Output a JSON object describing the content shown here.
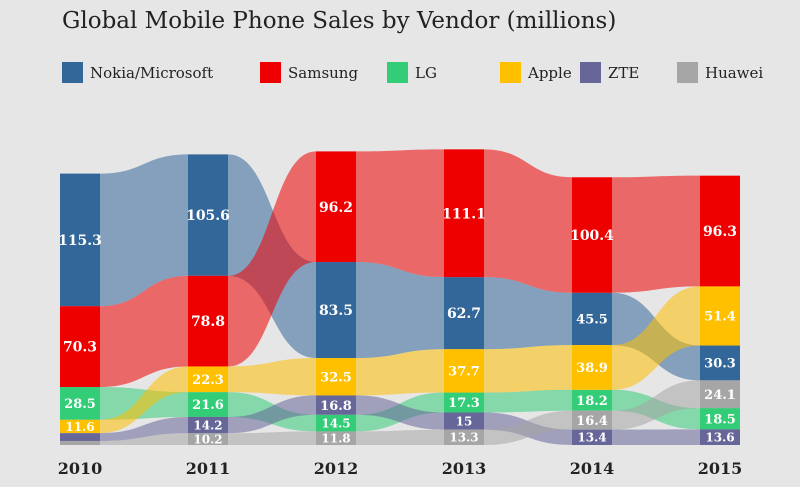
{
  "chart_data": {
    "type": "bump-area",
    "title": "Global Mobile Phone Sales by Vendor (millions)",
    "categories": [
      "2010",
      "2011",
      "2012",
      "2013",
      "2014",
      "2015"
    ],
    "series": [
      {
        "name": "Nokia/Microsoft",
        "color": "#336699",
        "values": [
          115.3,
          105.6,
          83.5,
          62.7,
          45.5,
          30.3
        ]
      },
      {
        "name": "Samsung",
        "color": "#ee0000",
        "values": [
          70.3,
          78.8,
          96.2,
          111.1,
          100.4,
          96.3
        ]
      },
      {
        "name": "LG",
        "color": "#33cc77",
        "values": [
          28.5,
          21.6,
          14.5,
          17.3,
          18.2,
          18.5
        ]
      },
      {
        "name": "Apple",
        "color": "#ffc000",
        "values": [
          11.6,
          22.3,
          32.5,
          37.7,
          38.9,
          51.4
        ]
      },
      {
        "name": "ZTE",
        "color": "#666699",
        "values": [
          6.8,
          14.2,
          16.8,
          15.0,
          13.4,
          13.6
        ]
      },
      {
        "name": "Huawei",
        "color": "#a6a6a6",
        "values": [
          3.5,
          10.2,
          11.8,
          13.3,
          16.4,
          24.1
        ]
      }
    ],
    "stack_order_bottom_to_top": [
      [
        "Huawei",
        "ZTE",
        "Apple",
        "LG",
        "Samsung",
        "Nokia/Microsoft"
      ],
      [
        "Huawei",
        "ZTE",
        "LG",
        "Apple",
        "Samsung",
        "Nokia/Microsoft"
      ],
      [
        "Huawei",
        "LG",
        "ZTE",
        "Apple",
        "Nokia/Microsoft",
        "Samsung"
      ],
      [
        "Huawei",
        "ZTE",
        "LG",
        "Apple",
        "Nokia/Microsoft",
        "Samsung"
      ],
      [
        "ZTE",
        "Huawei",
        "LG",
        "Apple",
        "Nokia/Microsoft",
        "Samsung"
      ],
      [
        "ZTE",
        "LG",
        "Huawei",
        "Nokia/Microsoft",
        "Apple",
        "Samsung"
      ]
    ],
    "unlabeled_series": [
      [
        "ZTE",
        "2010"
      ],
      [
        "Huawei",
        "2010"
      ]
    ],
    "ylabel": "millions",
    "ylim": [
      0,
      270
    ]
  }
}
